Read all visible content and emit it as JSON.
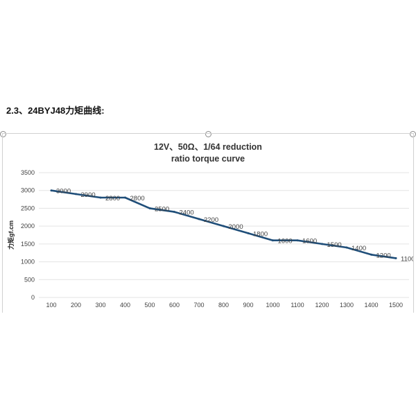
{
  "heading": "2.3、24BYJ48力矩曲线:",
  "chart_data": {
    "type": "line",
    "title": [
      "12V、50Ω、1/64 reduction",
      "ratio torque curve"
    ],
    "ylabel": "力矩gf.cm",
    "xlabel": "",
    "x": [
      100,
      200,
      300,
      400,
      500,
      600,
      700,
      800,
      900,
      1000,
      1100,
      1200,
      1300,
      1400,
      1500
    ],
    "series": [
      {
        "values": [
          3000,
          2900,
          2800,
          2800,
          2500,
          2400,
          2200,
          2000,
          1800,
          1600,
          1600,
          1500,
          1400,
          1200,
          1100
        ]
      }
    ],
    "ylim": [
      0,
      3500
    ],
    "yticks": [
      0,
      500,
      1000,
      1500,
      2000,
      2500,
      3000,
      3500
    ],
    "grid": true,
    "legend": "none",
    "line_color": "#1f4e79"
  }
}
